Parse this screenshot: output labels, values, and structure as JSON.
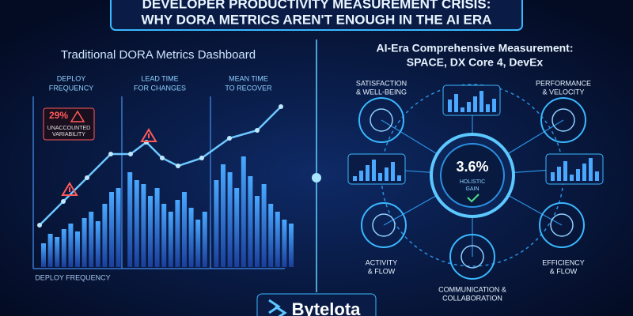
{
  "header": {
    "title_lines": [
      "DEVELOPER PRODUCTIVITY MEASUREMENT CRISIS:",
      "WHY DORA METRICS AREN'T ENOUGH IN THE AI ERA"
    ]
  },
  "left_panel": {
    "title": "Traditional DORA Metrics Dashboard",
    "columns": [
      [
        "DEPLOY",
        "FREQUENCY"
      ],
      [
        "LEAD TIME",
        "FOR CHANGES"
      ],
      [
        "MEAN TIME",
        "TO RECOVER"
      ]
    ],
    "alert": {
      "value": "29%",
      "label_lines": [
        "UNACCOUNTED",
        "VARIABILITY"
      ]
    },
    "footer": "DEPLOY FREQUENCY"
  },
  "right_panel": {
    "title_lines": [
      "AI-Era Comprehensive Measurement:",
      "SPACE, DX Core 4, DevEx"
    ],
    "center": {
      "value": "3.6%",
      "label_lines": [
        "HOLISTIC",
        "GAIN"
      ]
    },
    "nodes": [
      {
        "label_lines": [
          "SATISFACTION",
          "& WELL-BEING"
        ]
      },
      {
        "label_lines": [
          "PERFORMANCE",
          "& VELOCITY"
        ]
      },
      {
        "label_lines": [
          "ACTIVITY",
          "& FLOW"
        ]
      },
      {
        "label_lines": [
          "EFFICIENCY",
          "& FLOW"
        ]
      },
      {
        "label_lines": [
          "COMMUNICATION &",
          "COLLABORATION"
        ]
      }
    ]
  },
  "brand": "Bytelota"
}
